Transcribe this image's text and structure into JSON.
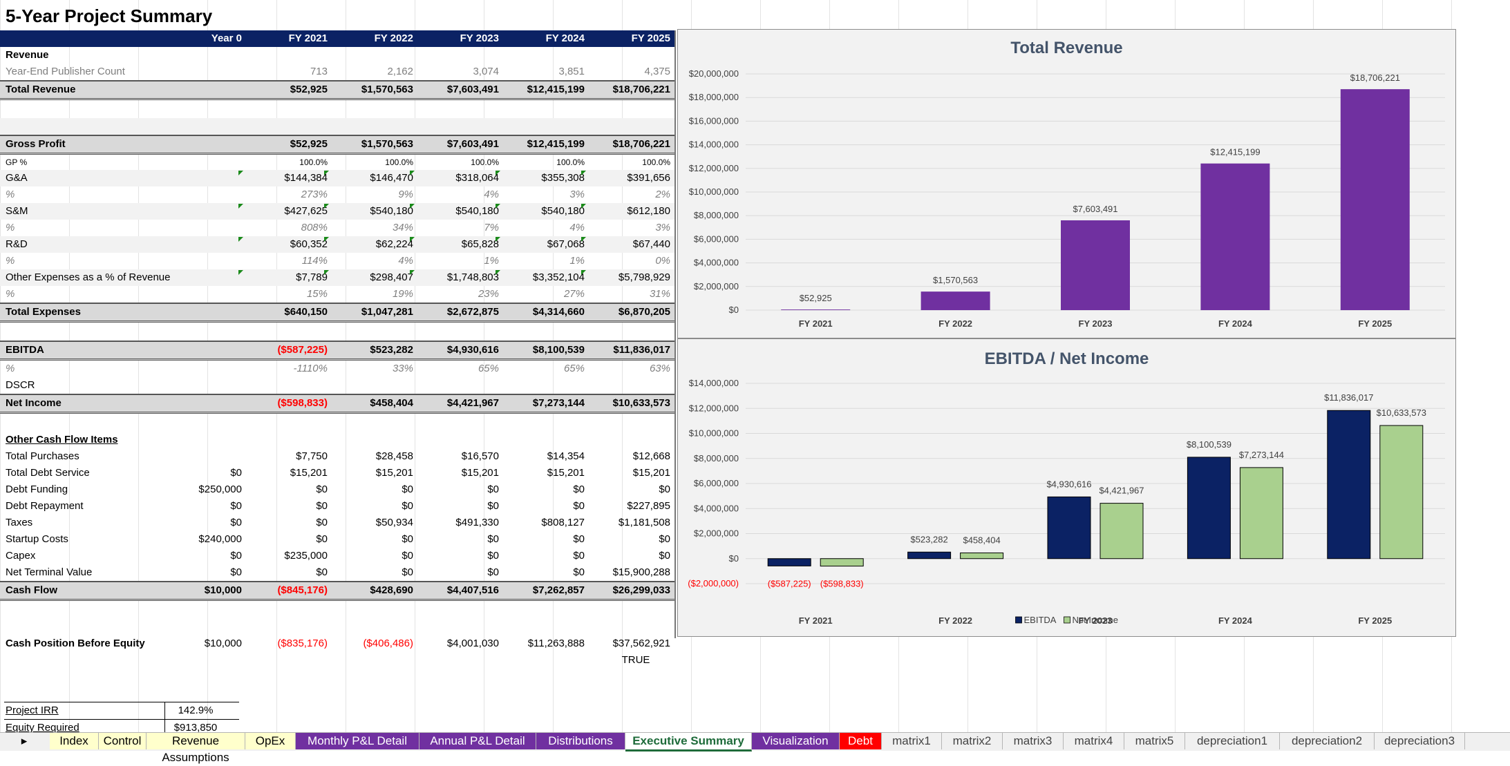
{
  "sheet_title": "5-Year Project Summary",
  "columns": [
    "Year 0",
    "FY 2021",
    "FY 2022",
    "FY 2023",
    "FY 2024",
    "FY 2025"
  ],
  "rows": [
    {
      "label": "Revenue",
      "style": "bold",
      "values": [
        "",
        "",
        "",
        "",
        "",
        ""
      ]
    },
    {
      "label": "Year-End Publisher Count",
      "style": "gray",
      "values": [
        "",
        "713",
        "2,162",
        "3,074",
        "3,851",
        "4,375"
      ]
    },
    {
      "label": "Total Revenue",
      "style": "total",
      "values": [
        "",
        "$52,925",
        "$1,570,563",
        "$7,603,491",
        "$12,415,199",
        "$18,706,221"
      ]
    },
    {
      "label": "",
      "style": "gap",
      "values": []
    },
    {
      "label": "",
      "style": "gaplight",
      "values": []
    },
    {
      "label": "Gross Profit",
      "style": "total",
      "values": [
        "",
        "$52,925",
        "$1,570,563",
        "$7,603,491",
        "$12,415,199",
        "$18,706,221"
      ]
    },
    {
      "label": "GP %",
      "style": "small",
      "values": [
        "",
        "100.0%",
        "100.0%",
        "100.0%",
        "100.0%",
        "100.0%"
      ]
    },
    {
      "label": "G&A",
      "style": "light",
      "values": [
        "",
        "$144,384",
        "$146,470",
        "$318,064",
        "$355,308",
        "$391,656"
      ]
    },
    {
      "label": "%",
      "style": "pct",
      "values": [
        "",
        "273%",
        "9%",
        "4%",
        "3%",
        "2%"
      ]
    },
    {
      "label": "S&M",
      "style": "light",
      "values": [
        "",
        "$427,625",
        "$540,180",
        "$540,180",
        "$540,180",
        "$612,180"
      ]
    },
    {
      "label": "%",
      "style": "pct",
      "values": [
        "",
        "808%",
        "34%",
        "7%",
        "4%",
        "3%"
      ]
    },
    {
      "label": "R&D",
      "style": "light",
      "values": [
        "",
        "$60,352",
        "$62,224",
        "$65,828",
        "$67,068",
        "$67,440"
      ]
    },
    {
      "label": "%",
      "style": "pct",
      "values": [
        "",
        "114%",
        "4%",
        "1%",
        "1%",
        "0%"
      ]
    },
    {
      "label": "Other Expenses as a % of Revenue",
      "style": "light",
      "values": [
        "",
        "$7,789",
        "$298,407",
        "$1,748,803",
        "$3,352,104",
        "$5,798,929"
      ]
    },
    {
      "label": "%",
      "style": "pct",
      "values": [
        "",
        "15%",
        "19%",
        "23%",
        "27%",
        "31%"
      ]
    },
    {
      "label": "Total Expenses",
      "style": "total",
      "values": [
        "",
        "$640,150",
        "$1,047,281",
        "$2,672,875",
        "$4,314,660",
        "$6,870,205"
      ]
    },
    {
      "label": "",
      "style": "gap",
      "values": []
    },
    {
      "label": "EBITDA",
      "style": "total",
      "values": [
        "",
        "($587,225)",
        "$523,282",
        "$4,930,616",
        "$8,100,539",
        "$11,836,017"
      ]
    },
    {
      "label": "%",
      "style": "pct",
      "values": [
        "",
        "-1110%",
        "33%",
        "65%",
        "65%",
        "63%"
      ]
    },
    {
      "label": "DSCR",
      "style": "plain",
      "values": [
        "",
        "",
        "",
        "",
        "",
        ""
      ]
    },
    {
      "label": "Net Income",
      "style": "total",
      "values": [
        "",
        "($598,833)",
        "$458,404",
        "$4,421,967",
        "$7,273,144",
        "$10,633,573"
      ]
    },
    {
      "label": "",
      "style": "gap",
      "values": []
    },
    {
      "label": "Other Cash Flow Items",
      "style": "ul",
      "values": []
    },
    {
      "label": "Total Purchases",
      "style": "plain",
      "values": [
        "",
        "$7,750",
        "$28,458",
        "$16,570",
        "$14,354",
        "$12,668"
      ]
    },
    {
      "label": "Total Debt Service",
      "style": "plain",
      "values": [
        "$0",
        "$15,201",
        "$15,201",
        "$15,201",
        "$15,201",
        "$15,201"
      ]
    },
    {
      "label": "Debt Funding",
      "style": "plain",
      "values": [
        "$250,000",
        "$0",
        "$0",
        "$0",
        "$0",
        "$0"
      ]
    },
    {
      "label": "Debt Repayment",
      "style": "plain",
      "values": [
        "$0",
        "$0",
        "$0",
        "$0",
        "$0",
        "$227,895"
      ]
    },
    {
      "label": "Taxes",
      "style": "plain",
      "values": [
        "$0",
        "$0",
        "$50,934",
        "$491,330",
        "$808,127",
        "$1,181,508"
      ]
    },
    {
      "label": "Startup Costs",
      "style": "plain",
      "values": [
        "$240,000",
        "$0",
        "$0",
        "$0",
        "$0",
        "$0"
      ]
    },
    {
      "label": "Capex",
      "style": "plain",
      "values": [
        "$0",
        "$235,000",
        "$0",
        "$0",
        "$0",
        "$0"
      ]
    },
    {
      "label": "Net Terminal Value",
      "style": "plain",
      "values": [
        "$0",
        "$0",
        "$0",
        "$0",
        "$0",
        "$15,900,288"
      ]
    },
    {
      "label": "Cash Flow",
      "style": "total",
      "values": [
        "$10,000",
        "($845,176)",
        "$428,690",
        "$4,407,516",
        "$7,262,857",
        "$26,299,033"
      ]
    },
    {
      "label": "",
      "style": "gap",
      "values": []
    },
    {
      "label": "Cash Position Before Equity",
      "style": "boldlabel",
      "values": [
        "$10,000",
        "($835,176)",
        "($406,486)",
        "$4,001,030",
        "$11,263,888",
        "$37,562,921"
      ]
    },
    {
      "label": "",
      "style": "true",
      "values": [
        "",
        "",
        "",
        "",
        "",
        "TRUE"
      ]
    }
  ],
  "irr": {
    "project_irr_label": "Project IRR",
    "project_irr_value": "142.9%",
    "equity_label": "Equity Required",
    "equity_value": "$913,850"
  },
  "charts": {
    "revenue": {
      "title": "Total Revenue",
      "type": "bar",
      "categories": [
        "FY 2021",
        "FY 2022",
        "FY 2023",
        "FY 2024",
        "FY 2025"
      ],
      "values": [
        52925,
        1570563,
        7603491,
        12415199,
        18706221
      ],
      "labels": [
        "$52,925",
        "$1,570,563",
        "$7,603,491",
        "$12,415,199",
        "$18,706,221"
      ],
      "yticks": [
        "$0",
        "$2,000,000",
        "$4,000,000",
        "$6,000,000",
        "$8,000,000",
        "$10,000,000",
        "$12,000,000",
        "$14,000,000",
        "$16,000,000",
        "$18,000,000",
        "$20,000,000"
      ],
      "ylim": [
        0,
        20000000
      ],
      "color": "#7030a0"
    },
    "ebitda": {
      "title": "EBITDA / Net Income",
      "type": "bar",
      "categories": [
        "FY 2021",
        "FY 2022",
        "FY 2023",
        "FY 2024",
        "FY 2025"
      ],
      "series": [
        {
          "name": "EBITDA",
          "values": [
            -587225,
            523282,
            4930616,
            8100539,
            11836017
          ],
          "labels": [
            "($587,225)",
            "$523,282",
            "$4,930,616",
            "$8,100,539",
            "$11,836,017"
          ],
          "color": "#0b2264"
        },
        {
          "name": "Net Income",
          "values": [
            -598833,
            458404,
            4421967,
            7273144,
            10633573
          ],
          "labels": [
            "($598,833)",
            "$458,404",
            "$4,421,967",
            "$7,273,144",
            "$10,633,573"
          ],
          "color": "#a9d08e"
        }
      ],
      "yticks": [
        "($2,000,000)",
        "$0",
        "$2,000,000",
        "$4,000,000",
        "$6,000,000",
        "$8,000,000",
        "$10,000,000",
        "$12,000,000",
        "$14,000,000"
      ],
      "ylim": [
        -2000000,
        14000000
      ],
      "legend": "bottom"
    }
  },
  "chart_data": [
    {
      "type": "bar",
      "title": "Total Revenue",
      "categories": [
        "FY 2021",
        "FY 2022",
        "FY 2023",
        "FY 2024",
        "FY 2025"
      ],
      "values": [
        52925,
        1570563,
        7603491,
        12415199,
        18706221
      ],
      "ylim": [
        0,
        20000000
      ]
    },
    {
      "type": "bar",
      "title": "EBITDA / Net Income",
      "categories": [
        "FY 2021",
        "FY 2022",
        "FY 2023",
        "FY 2024",
        "FY 2025"
      ],
      "series": [
        {
          "name": "EBITDA",
          "values": [
            -587225,
            523282,
            4930616,
            8100539,
            11836017
          ]
        },
        {
          "name": "Net Income",
          "values": [
            -598833,
            458404,
            4421967,
            7273144,
            10633573
          ]
        }
      ],
      "ylim": [
        -2000000,
        14000000
      ],
      "legend": "bottom"
    }
  ],
  "tabs": [
    {
      "label": "Index",
      "color": "#ffffcc",
      "text": "#000000"
    },
    {
      "label": "Control",
      "color": "#ffffcc",
      "text": "#000000"
    },
    {
      "label": "Revenue Assumptions",
      "color": "#ffffcc",
      "text": "#000000"
    },
    {
      "label": "OpEx",
      "color": "#ffffcc",
      "text": "#000000"
    },
    {
      "label": "Monthly P&L Detail",
      "color": "#7030a0",
      "text": "#ffffff"
    },
    {
      "label": "Annual P&L Detail",
      "color": "#7030a0",
      "text": "#ffffff"
    },
    {
      "label": "Distributions",
      "color": "#7030a0",
      "text": "#ffffff"
    },
    {
      "label": "Executive Summary",
      "color": "#ffffff",
      "text": "#1e6b3a",
      "active": true
    },
    {
      "label": "Visualization",
      "color": "#7030a0",
      "text": "#ffffff"
    },
    {
      "label": "Debt",
      "color": "#ff0000",
      "text": "#ffffff"
    },
    {
      "label": "matrix1",
      "color": "#f0f0f0",
      "text": "#444444"
    },
    {
      "label": "matrix2",
      "color": "#f0f0f0",
      "text": "#444444"
    },
    {
      "label": "matrix3",
      "color": "#f0f0f0",
      "text": "#444444"
    },
    {
      "label": "matrix4",
      "color": "#f0f0f0",
      "text": "#444444"
    },
    {
      "label": "matrix5",
      "color": "#f0f0f0",
      "text": "#444444"
    },
    {
      "label": "depreciation1",
      "color": "#f0f0f0",
      "text": "#444444"
    },
    {
      "label": "depreciation2",
      "color": "#f0f0f0",
      "text": "#444444"
    },
    {
      "label": "depreciation3",
      "color": "#f0f0f0",
      "text": "#444444"
    }
  ],
  "tab_scroll_arrow": "▸"
}
